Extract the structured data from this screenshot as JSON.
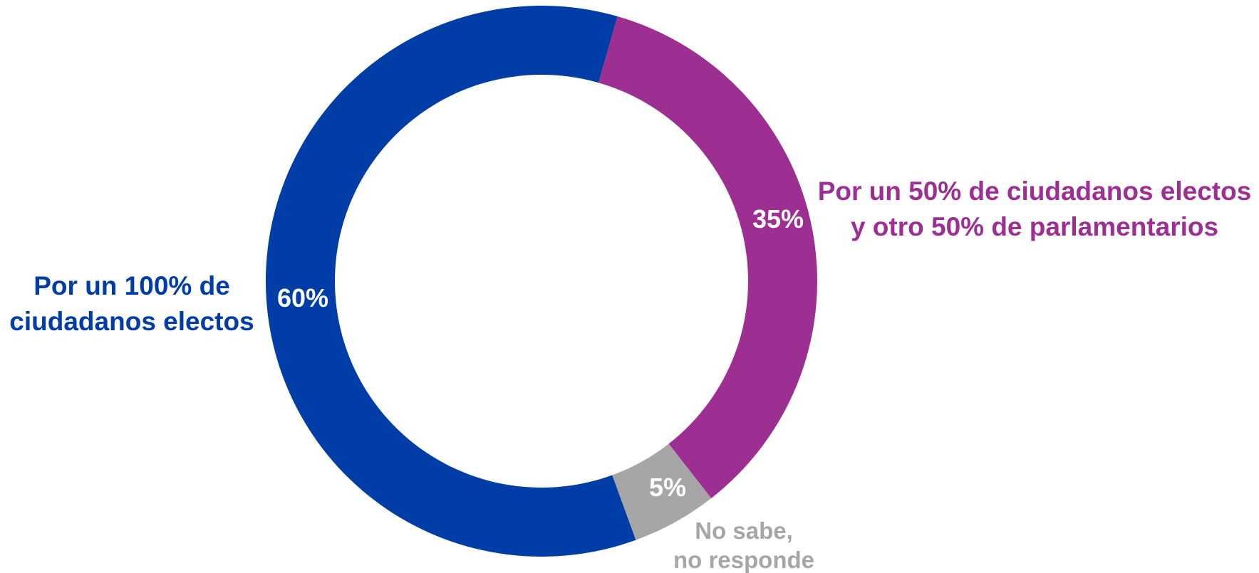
{
  "chart_data": {
    "type": "pie",
    "variant": "donut",
    "title": "",
    "slices": [
      {
        "label_lines": [
          "Por un 50% de ciudadanos electos",
          "y otro 50% de parlamentarios"
        ],
        "value": 35,
        "value_label": "35%",
        "color": "#9E2F92"
      },
      {
        "label_lines": [
          "No sabe,",
          "no responde"
        ],
        "value": 5,
        "value_label": "5%",
        "color": "#A6A6A6"
      },
      {
        "label_lines": [
          "Por un 100% de",
          "ciudadanos electos"
        ],
        "value": 60,
        "value_label": "60%",
        "color": "#003DA6"
      }
    ]
  }
}
